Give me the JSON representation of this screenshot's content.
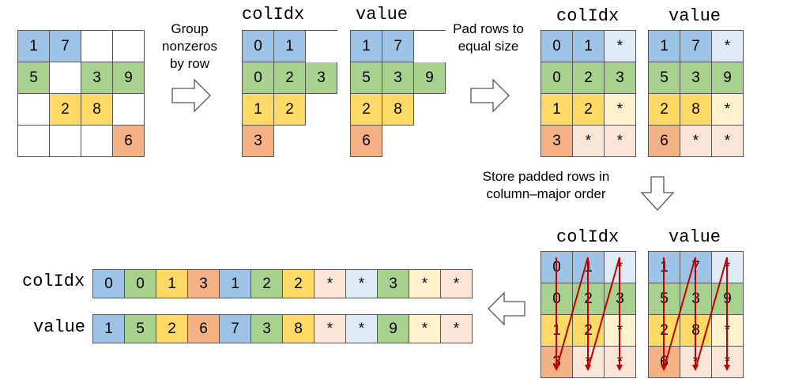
{
  "colors": {
    "blue": "#9DC3E6",
    "blue_light": "#DEEBF7",
    "green": "#A9D18E",
    "green_light": "#E2F0D9",
    "yellow": "#FFD966",
    "yellow_light": "#FFF2CC",
    "orange": "#F4B183",
    "orange_light": "#FBE5D6",
    "arrow_red": "#C00000"
  },
  "labels": {
    "step1": "Group nonzeros by row",
    "step2": "Pad rows to equal size",
    "step3": "Store padded rows in column–major order",
    "colidx": "colIdx",
    "value": "value"
  },
  "matrix": [
    [
      "1",
      "7",
      "",
      ""
    ],
    [
      "5",
      "",
      "3",
      "9"
    ],
    [
      "",
      "2",
      "8",
      ""
    ],
    [
      "",
      "",
      "",
      "6"
    ]
  ],
  "grouped": {
    "colidx": [
      [
        "0",
        "1"
      ],
      [
        "0",
        "2",
        "3"
      ],
      [
        "1",
        "2"
      ],
      [
        "3"
      ]
    ],
    "value": [
      [
        "1",
        "7"
      ],
      [
        "5",
        "3",
        "9"
      ],
      [
        "2",
        "8"
      ],
      [
        "6"
      ]
    ]
  },
  "padded": {
    "colidx": [
      [
        "0",
        "1",
        "*"
      ],
      [
        "0",
        "2",
        "3"
      ],
      [
        "1",
        "2",
        "*"
      ],
      [
        "3",
        "*",
        "*"
      ]
    ],
    "value": [
      [
        "1",
        "7",
        "*"
      ],
      [
        "5",
        "3",
        "9"
      ],
      [
        "2",
        "8",
        "*"
      ],
      [
        "6",
        "*",
        "*"
      ]
    ]
  },
  "flat": {
    "colidx": [
      "0",
      "0",
      "1",
      "3",
      "1",
      "2",
      "2",
      "*",
      "*",
      "3",
      "*",
      "*"
    ],
    "value": [
      "1",
      "5",
      "2",
      "6",
      "7",
      "3",
      "8",
      "*",
      "*",
      "9",
      "*",
      "*"
    ]
  },
  "flat_colors": [
    "blue",
    "green",
    "yellow",
    "orange",
    "blue",
    "green",
    "yellow",
    "orange_light",
    "blue_light",
    "green",
    "yellow_light",
    "orange_light"
  ]
}
